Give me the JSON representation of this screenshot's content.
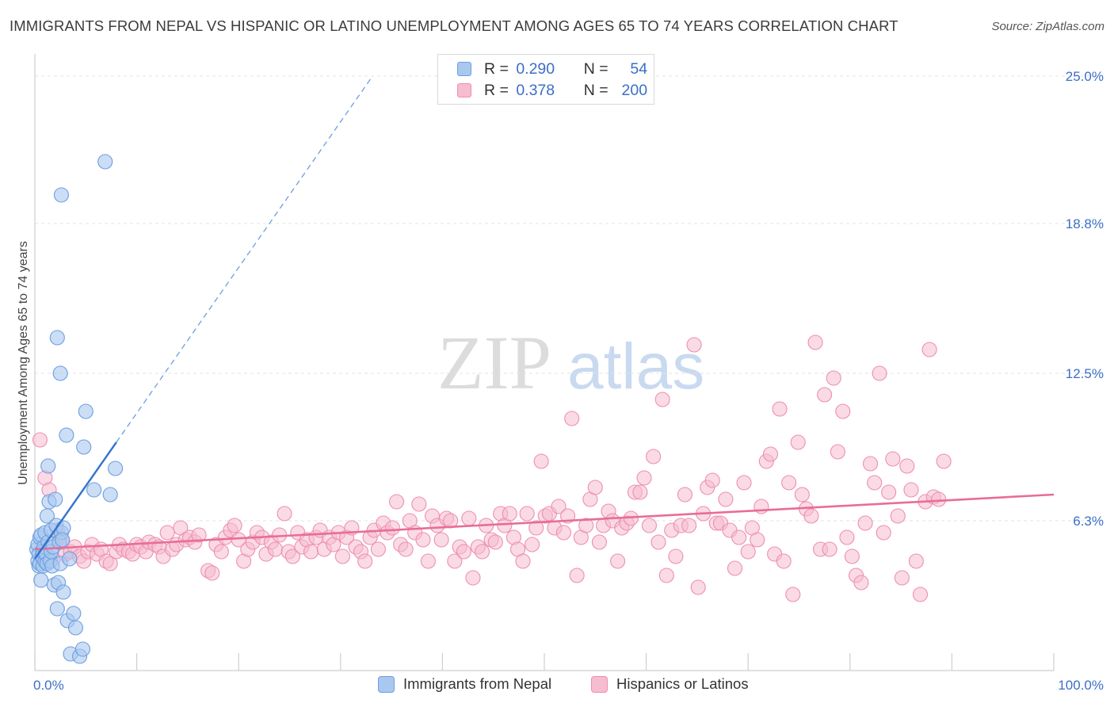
{
  "title": "IMMIGRANTS FROM NEPAL VS HISPANIC OR LATINO UNEMPLOYMENT AMONG AGES 65 TO 74 YEARS CORRELATION CHART",
  "source": "Source: ZipAtlas.com",
  "watermark": {
    "zip": "ZIP",
    "atlas": "atlas"
  },
  "colors": {
    "blue_fill": "#a9c8f0",
    "blue_stroke": "#6d9edf",
    "blue_line": "#3373cf",
    "pink_fill": "#f6bcd0",
    "pink_stroke": "#ee8fb0",
    "pink_line": "#e86d97",
    "tick_label": "#3b6fc6",
    "grid": "#e3e3e3"
  },
  "legend": {
    "r_label": "R =",
    "n_label": "N =",
    "series": [
      {
        "name": "Immigrants from Nepal",
        "r": "0.290",
        "n": "54"
      },
      {
        "name": "Hispanics or Latinos",
        "r": "0.378",
        "n": "200"
      }
    ]
  },
  "chart_data": {
    "type": "scatter",
    "title": "IMMIGRANTS FROM NEPAL VS HISPANIC OR LATINO UNEMPLOYMENT AMONG AGES 65 TO 74 YEARS CORRELATION CHART",
    "xlabel": "",
    "ylabel": "Unemployment Among Ages 65 to 74 years",
    "xlim": [
      0,
      100
    ],
    "ylim": [
      0,
      25.6
    ],
    "x_tick_labels": [
      "0.0%",
      "100.0%"
    ],
    "y_ticks": [
      6.3,
      12.5,
      18.8,
      25.0
    ],
    "y_tick_labels": [
      "6.3%",
      "12.5%",
      "18.8%",
      "25.0%"
    ],
    "series": [
      {
        "name": "Immigrants from Nepal",
        "r": 0.29,
        "n": 54,
        "trend": {
          "x0": 0,
          "y0": 4.7,
          "x1": 8,
          "y1": 9.6,
          "dashed_to_x": 33
        },
        "points": [
          [
            0.2,
            5.1
          ],
          [
            0.3,
            4.6
          ],
          [
            0.3,
            5.3
          ],
          [
            0.4,
            4.4
          ],
          [
            0.4,
            4.9
          ],
          [
            0.5,
            5.6
          ],
          [
            0.5,
            4.5
          ],
          [
            0.6,
            3.8
          ],
          [
            0.6,
            5.7
          ],
          [
            0.7,
            4.8
          ],
          [
            0.8,
            5.0
          ],
          [
            0.8,
            4.4
          ],
          [
            0.9,
            5.2
          ],
          [
            1.0,
            4.6
          ],
          [
            1.0,
            5.8
          ],
          [
            1.1,
            4.9
          ],
          [
            1.2,
            6.5
          ],
          [
            1.2,
            4.5
          ],
          [
            1.3,
            8.6
          ],
          [
            1.3,
            5.4
          ],
          [
            1.4,
            7.1
          ],
          [
            1.5,
            4.6
          ],
          [
            1.6,
            5.0
          ],
          [
            1.6,
            5.9
          ],
          [
            1.7,
            4.4
          ],
          [
            1.8,
            5.2
          ],
          [
            1.9,
            3.6
          ],
          [
            2.0,
            7.2
          ],
          [
            2.1,
            6.1
          ],
          [
            2.2,
            2.6
          ],
          [
            2.2,
            14.0
          ],
          [
            2.3,
            3.7
          ],
          [
            2.4,
            5.4
          ],
          [
            2.5,
            4.5
          ],
          [
            2.6,
            5.8
          ],
          [
            2.8,
            6.0
          ],
          [
            2.5,
            12.5
          ],
          [
            2.6,
            20.0
          ],
          [
            2.7,
            5.5
          ],
          [
            2.8,
            3.3
          ],
          [
            3.1,
            9.9
          ],
          [
            3.2,
            2.1
          ],
          [
            3.4,
            4.7
          ],
          [
            3.5,
            0.7
          ],
          [
            3.8,
            2.4
          ],
          [
            4.0,
            1.8
          ],
          [
            4.4,
            0.6
          ],
          [
            4.7,
            0.9
          ],
          [
            4.8,
            9.4
          ],
          [
            5.0,
            10.9
          ],
          [
            5.8,
            7.6
          ],
          [
            7.4,
            7.4
          ],
          [
            7.9,
            8.5
          ],
          [
            6.9,
            21.4
          ]
        ]
      },
      {
        "name": "Hispanics or Latinos",
        "r": 0.378,
        "n": 200,
        "trend": {
          "x0": 0,
          "y0": 5.1,
          "x1": 100,
          "y1": 7.4
        },
        "points": [
          [
            0.5,
            9.7
          ],
          [
            1.0,
            8.1
          ],
          [
            1.4,
            7.6
          ],
          [
            1.8,
            4.7
          ],
          [
            2.2,
            5.9
          ],
          [
            2.4,
            5.6
          ],
          [
            2.7,
            5.4
          ],
          [
            3.0,
            4.9
          ],
          [
            3.5,
            5.0
          ],
          [
            3.9,
            5.2
          ],
          [
            4.4,
            4.8
          ],
          [
            4.8,
            4.6
          ],
          [
            5.2,
            5.0
          ],
          [
            5.6,
            5.3
          ],
          [
            6.1,
            4.9
          ],
          [
            6.5,
            5.1
          ],
          [
            7.0,
            4.6
          ],
          [
            7.4,
            4.5
          ],
          [
            8.0,
            5.0
          ],
          [
            8.3,
            5.3
          ],
          [
            8.7,
            5.1
          ],
          [
            9.2,
            5.0
          ],
          [
            9.6,
            4.9
          ],
          [
            10.0,
            5.3
          ],
          [
            10.4,
            5.2
          ],
          [
            10.9,
            5.0
          ],
          [
            11.2,
            5.4
          ],
          [
            11.8,
            5.3
          ],
          [
            12.2,
            5.2
          ],
          [
            12.6,
            4.8
          ],
          [
            13.0,
            5.8
          ],
          [
            13.5,
            5.1
          ],
          [
            13.9,
            5.3
          ],
          [
            14.3,
            6.0
          ],
          [
            14.8,
            5.5
          ],
          [
            15.2,
            5.6
          ],
          [
            15.7,
            5.4
          ],
          [
            16.1,
            5.7
          ],
          [
            17.0,
            4.2
          ],
          [
            17.4,
            4.1
          ],
          [
            17.8,
            5.3
          ],
          [
            18.3,
            5.0
          ],
          [
            18.7,
            5.6
          ],
          [
            19.2,
            5.9
          ],
          [
            19.6,
            6.1
          ],
          [
            20.0,
            5.5
          ],
          [
            20.5,
            4.6
          ],
          [
            20.9,
            5.1
          ],
          [
            21.4,
            5.4
          ],
          [
            21.8,
            5.8
          ],
          [
            22.3,
            5.6
          ],
          [
            22.7,
            4.9
          ],
          [
            23.2,
            5.4
          ],
          [
            23.6,
            5.1
          ],
          [
            24.0,
            5.7
          ],
          [
            24.5,
            6.6
          ],
          [
            24.9,
            5.0
          ],
          [
            25.3,
            4.8
          ],
          [
            25.8,
            5.8
          ],
          [
            26.2,
            5.2
          ],
          [
            26.7,
            5.5
          ],
          [
            27.1,
            5.0
          ],
          [
            27.6,
            5.6
          ],
          [
            28.0,
            5.9
          ],
          [
            28.4,
            5.1
          ],
          [
            28.9,
            5.6
          ],
          [
            29.3,
            5.3
          ],
          [
            29.8,
            5.8
          ],
          [
            30.2,
            4.8
          ],
          [
            30.6,
            5.6
          ],
          [
            31.1,
            6.0
          ],
          [
            31.5,
            5.2
          ],
          [
            32.0,
            5.0
          ],
          [
            32.4,
            4.6
          ],
          [
            32.9,
            5.6
          ],
          [
            33.3,
            5.9
          ],
          [
            33.7,
            5.1
          ],
          [
            34.2,
            6.2
          ],
          [
            34.6,
            5.8
          ],
          [
            35.1,
            6.0
          ],
          [
            35.5,
            7.1
          ],
          [
            35.9,
            5.3
          ],
          [
            36.4,
            5.1
          ],
          [
            36.8,
            6.3
          ],
          [
            37.3,
            5.8
          ],
          [
            37.7,
            7.0
          ],
          [
            38.1,
            5.5
          ],
          [
            38.6,
            4.6
          ],
          [
            39.0,
            6.5
          ],
          [
            39.5,
            6.1
          ],
          [
            39.9,
            5.5
          ],
          [
            40.4,
            6.4
          ],
          [
            40.8,
            6.3
          ],
          [
            41.2,
            4.6
          ],
          [
            41.7,
            5.2
          ],
          [
            42.1,
            5.0
          ],
          [
            42.6,
            6.4
          ],
          [
            43.0,
            3.9
          ],
          [
            43.5,
            5.2
          ],
          [
            43.9,
            5.0
          ],
          [
            44.3,
            6.1
          ],
          [
            44.8,
            5.5
          ],
          [
            45.2,
            5.4
          ],
          [
            45.7,
            6.6
          ],
          [
            46.1,
            6.1
          ],
          [
            46.6,
            6.6
          ],
          [
            47.0,
            5.6
          ],
          [
            47.4,
            5.1
          ],
          [
            47.9,
            4.6
          ],
          [
            48.3,
            6.6
          ],
          [
            48.8,
            5.3
          ],
          [
            49.2,
            6.0
          ],
          [
            49.7,
            8.8
          ],
          [
            50.1,
            6.5
          ],
          [
            50.5,
            6.6
          ],
          [
            51.0,
            6.0
          ],
          [
            51.4,
            6.9
          ],
          [
            51.9,
            5.8
          ],
          [
            52.3,
            6.5
          ],
          [
            52.7,
            10.6
          ],
          [
            53.2,
            4.0
          ],
          [
            53.6,
            5.6
          ],
          [
            54.1,
            6.1
          ],
          [
            54.5,
            7.2
          ],
          [
            55.0,
            7.7
          ],
          [
            55.4,
            5.4
          ],
          [
            55.8,
            6.1
          ],
          [
            56.3,
            6.7
          ],
          [
            56.7,
            6.3
          ],
          [
            57.2,
            4.6
          ],
          [
            57.6,
            6.0
          ],
          [
            58.1,
            6.2
          ],
          [
            58.5,
            6.4
          ],
          [
            58.9,
            7.5
          ],
          [
            59.4,
            7.5
          ],
          [
            59.8,
            8.1
          ],
          [
            60.3,
            6.1
          ],
          [
            60.7,
            9.0
          ],
          [
            61.2,
            5.4
          ],
          [
            61.6,
            11.4
          ],
          [
            62.0,
            4.0
          ],
          [
            62.5,
            5.9
          ],
          [
            62.9,
            4.8
          ],
          [
            63.4,
            6.1
          ],
          [
            63.8,
            7.4
          ],
          [
            64.2,
            6.1
          ],
          [
            64.7,
            13.7
          ],
          [
            65.1,
            3.5
          ],
          [
            65.6,
            6.6
          ],
          [
            66.0,
            7.7
          ],
          [
            66.5,
            8.0
          ],
          [
            66.9,
            6.2
          ],
          [
            67.3,
            6.2
          ],
          [
            67.8,
            7.2
          ],
          [
            68.2,
            5.9
          ],
          [
            68.7,
            4.3
          ],
          [
            69.1,
            5.6
          ],
          [
            69.6,
            7.9
          ],
          [
            70.0,
            5.0
          ],
          [
            70.4,
            6.0
          ],
          [
            70.9,
            5.5
          ],
          [
            71.3,
            6.9
          ],
          [
            71.8,
            8.8
          ],
          [
            72.2,
            9.1
          ],
          [
            72.6,
            4.9
          ],
          [
            73.1,
            11.0
          ],
          [
            73.5,
            4.6
          ],
          [
            74.0,
            7.9
          ],
          [
            74.4,
            3.2
          ],
          [
            74.9,
            9.6
          ],
          [
            75.3,
            7.4
          ],
          [
            75.7,
            6.8
          ],
          [
            76.2,
            6.5
          ],
          [
            76.6,
            13.8
          ],
          [
            77.1,
            5.1
          ],
          [
            77.5,
            11.6
          ],
          [
            78.0,
            5.1
          ],
          [
            78.4,
            12.3
          ],
          [
            78.8,
            9.2
          ],
          [
            79.3,
            10.9
          ],
          [
            79.7,
            5.6
          ],
          [
            80.2,
            4.8
          ],
          [
            80.6,
            4.0
          ],
          [
            81.1,
            3.7
          ],
          [
            81.5,
            6.2
          ],
          [
            82.0,
            8.7
          ],
          [
            82.4,
            7.9
          ],
          [
            82.9,
            12.5
          ],
          [
            83.3,
            5.8
          ],
          [
            83.8,
            7.5
          ],
          [
            84.2,
            8.9
          ],
          [
            84.7,
            6.5
          ],
          [
            85.1,
            3.9
          ],
          [
            85.6,
            8.6
          ],
          [
            86.0,
            7.6
          ],
          [
            86.5,
            4.6
          ],
          [
            86.9,
            3.2
          ],
          [
            87.4,
            7.1
          ],
          [
            87.8,
            13.5
          ],
          [
            88.2,
            7.3
          ],
          [
            88.7,
            7.2
          ],
          [
            89.2,
            8.8
          ]
        ]
      }
    ]
  }
}
